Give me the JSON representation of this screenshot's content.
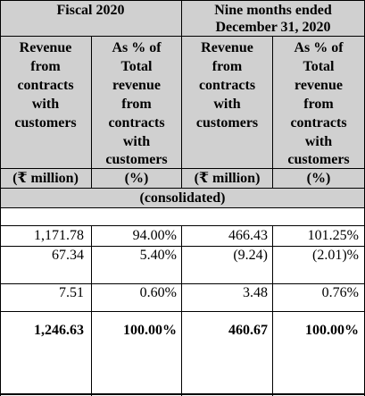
{
  "header": {
    "group1": "Fiscal 2020",
    "group2_line1": "Nine months ended",
    "group2_line2": "December 31, 2020",
    "col_revenue": [
      "Revenue",
      "from",
      "contracts",
      "with",
      "customers"
    ],
    "col_pct": [
      "As % of",
      "Total",
      "revenue",
      "from",
      "contracts",
      "with",
      "customers"
    ],
    "unit_million": "(₹ million)",
    "unit_pct": "(%)",
    "consolidated": "(consolidated)"
  },
  "rows": [
    [
      "1,171.78",
      "94.00%",
      "466.43",
      "101.25%"
    ],
    [
      "67.34",
      "5.40%",
      "(9.24)",
      "(2.01)%"
    ],
    [
      "7.51",
      "0.60%",
      "3.48",
      "0.76%"
    ],
    [
      "1,246.63",
      "100.00%",
      "460.67",
      "100.00%"
    ]
  ]
}
